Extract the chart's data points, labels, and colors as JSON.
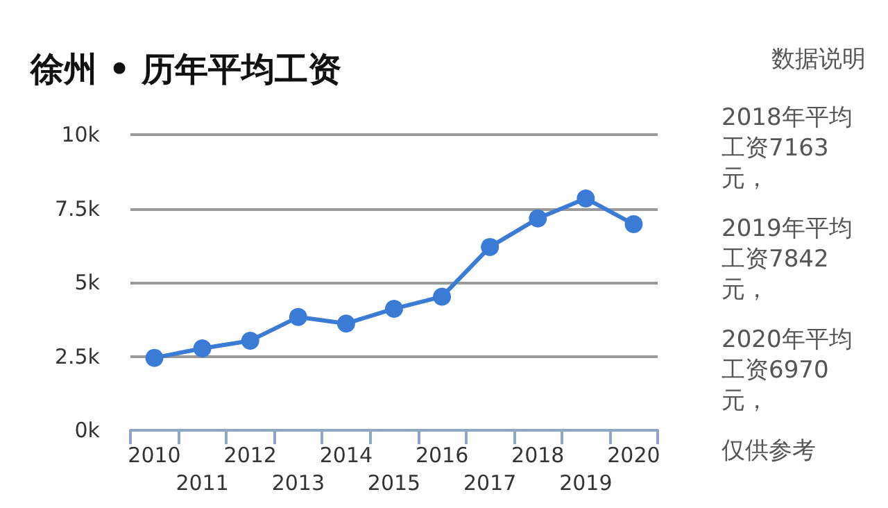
{
  "chart_data": {
    "type": "line",
    "title": "徐州 • 历年平均工资",
    "categories": [
      "2010",
      "2011",
      "2012",
      "2013",
      "2014",
      "2015",
      "2016",
      "2017",
      "2018",
      "2019",
      "2020"
    ],
    "series": [
      {
        "color": "#3a7bd5",
        "values": [
          2450,
          2770,
          3030,
          3830,
          3610,
          4110,
          4520,
          6200,
          7163,
          7842,
          6970
        ]
      }
    ],
    "ylim": [
      0,
      10000
    ],
    "yticks": [
      {
        "value": 0,
        "label": "0k"
      },
      {
        "value": 2500,
        "label": "2.5k"
      },
      {
        "value": 5000,
        "label": "5k"
      },
      {
        "value": 7500,
        "label": "7.5k"
      },
      {
        "value": 10000,
        "label": "10k"
      }
    ],
    "grid": "y",
    "marker": "circle",
    "line_style": "solid",
    "annotations": [
      "数据说明",
      "2018年平均工资7163元，",
      "2019年平均工资7842元，",
      "2020年平均工资6970元，",
      "仅供参考"
    ]
  }
}
